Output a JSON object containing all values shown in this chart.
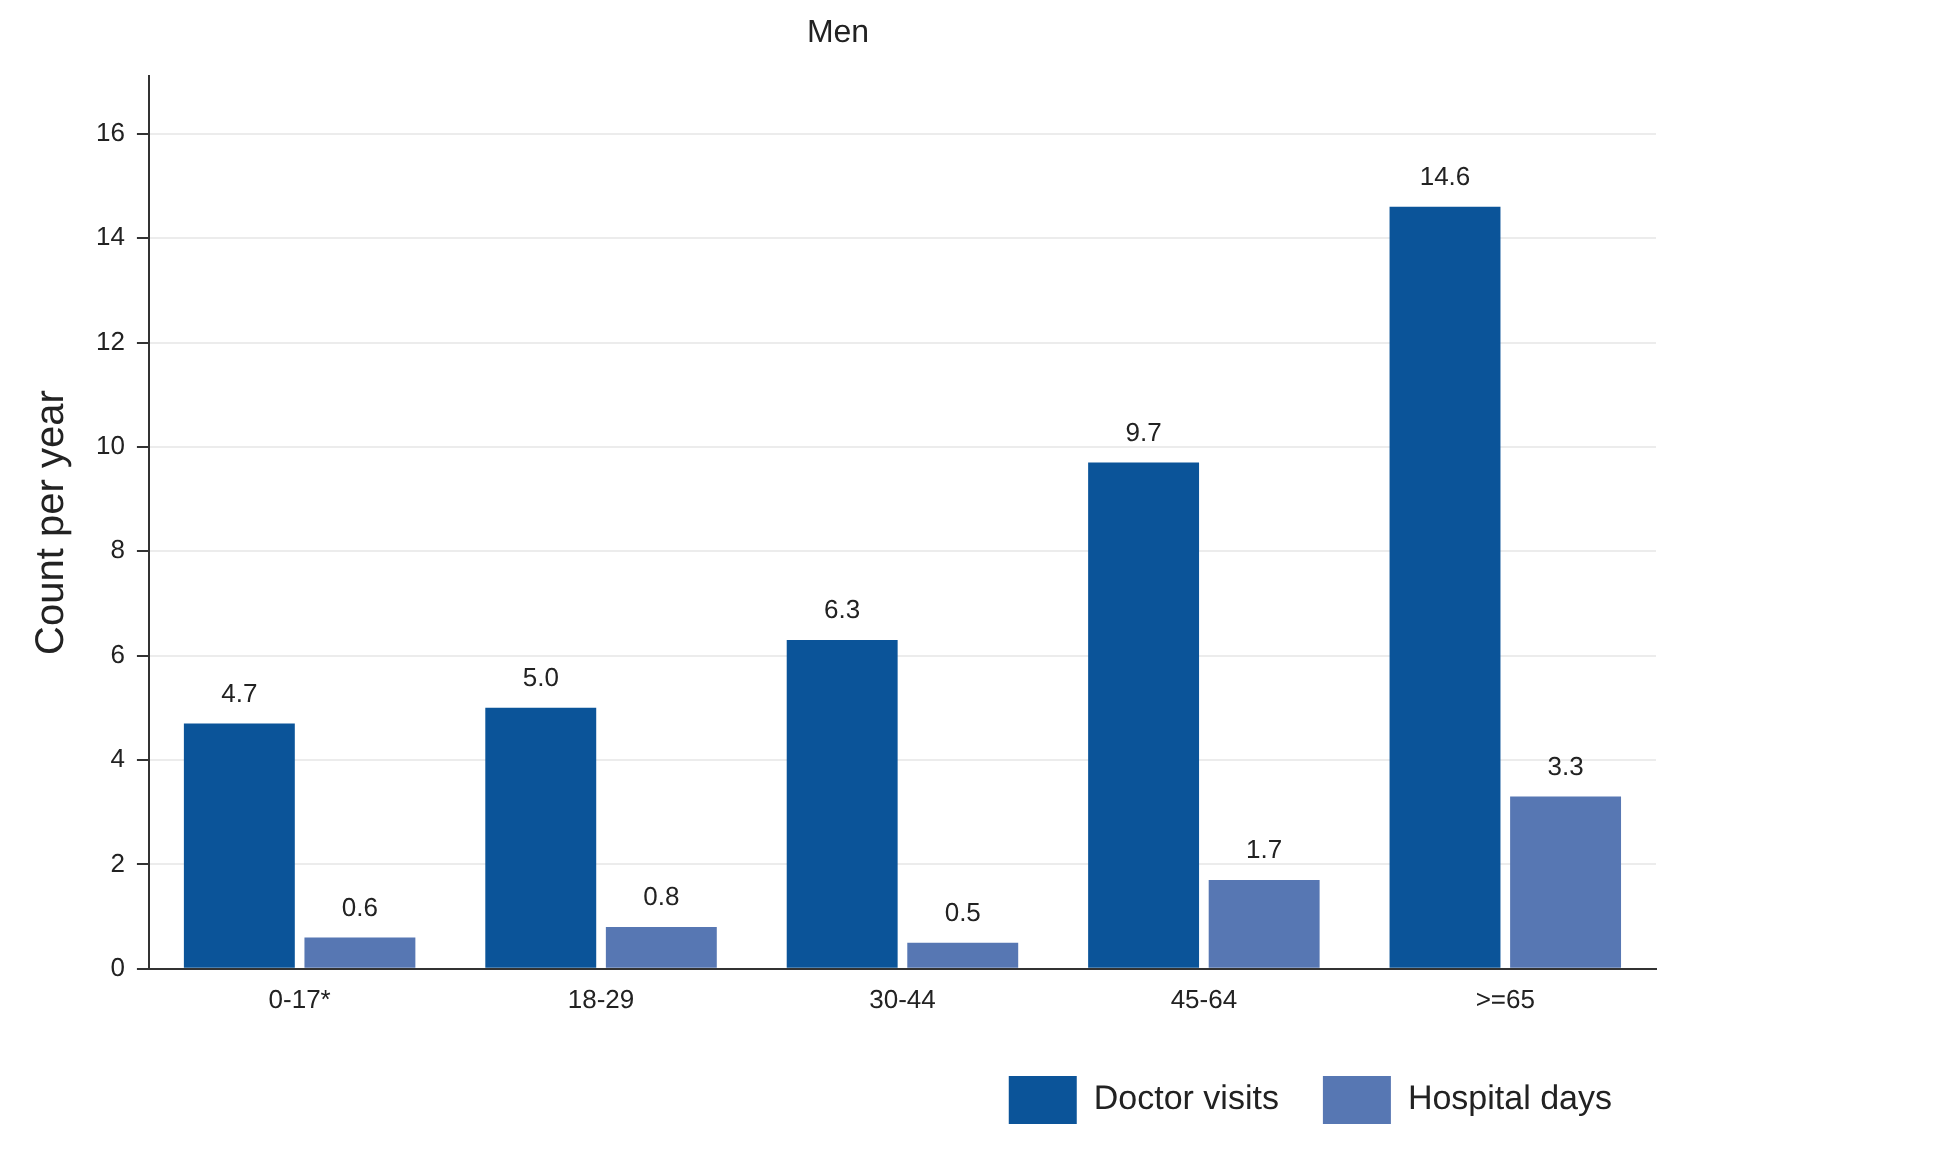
{
  "chart_data": {
    "type": "bar",
    "title": "Men",
    "ylabel": "Count per year",
    "categories": [
      "0-17*",
      "18-29",
      "30-44",
      "45-64",
      ">=65"
    ],
    "series": [
      {
        "name": "Doctor visits",
        "color": "#0b5499",
        "values": [
          4.7,
          5.0,
          6.3,
          9.7,
          14.6
        ]
      },
      {
        "name": "Hospital days",
        "color": "#5777b3",
        "values": [
          0.6,
          0.8,
          0.5,
          1.7,
          3.3
        ]
      }
    ],
    "value_labels": [
      [
        "4.7",
        "5.0",
        "6.3",
        "9.7",
        "14.6"
      ],
      [
        "0.6",
        "0.8",
        "0.5",
        "1.7",
        "3.3"
      ]
    ],
    "ylim": [
      0,
      17.1
    ],
    "yticks": [
      0,
      2,
      4,
      6,
      8,
      10,
      12,
      14,
      16
    ],
    "grid": "y",
    "legend": "bottom right"
  }
}
